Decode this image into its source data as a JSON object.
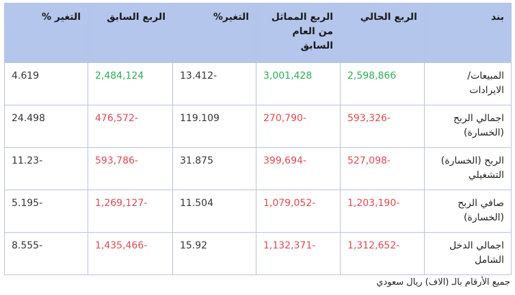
{
  "table": {
    "headers": [
      "بند",
      "الربع الحالي",
      "الربع المماثل من العام السابق",
      "التغير%",
      "الربع السابق",
      "التغير %"
    ],
    "rows": [
      {
        "label": "المبيعات/ الايرادات",
        "current": "2,598,866",
        "same_last_year": "3,001,428",
        "change_yoy": "13.412-",
        "previous": "2,484,124",
        "change_qoq": "4.619"
      },
      {
        "label": "اجمالي الربح (الخسارة)",
        "current": "593,326-",
        "same_last_year": "270,790-",
        "change_yoy": "119.109",
        "previous": "476,572-",
        "change_qoq": "24.498"
      },
      {
        "label": "الربح (الخسارة) التشغيلي",
        "current": "527,098-",
        "same_last_year": "399,694-",
        "change_yoy": "31.875",
        "previous": "593,786-",
        "change_qoq": "11.23-"
      },
      {
        "label": "صافي الربح (الخسارة)",
        "current": "1,203,190-",
        "same_last_year": "1,079,052-",
        "change_yoy": "11.504",
        "previous": "1,269,127-",
        "change_qoq": "5.195-"
      },
      {
        "label": "اجمالي الدخل الشامل",
        "current": "1,312,652-",
        "same_last_year": "1,132,371-",
        "change_yoy": "15.92",
        "previous": "1,435,466-",
        "change_qoq": "8.555-"
      }
    ]
  },
  "footnote": "جميع الأرقام بالـ (الاف) ريال سعودي",
  "colors": {
    "header_bg": "#b4c6ec",
    "positive": "#2eae55",
    "negative": "#e0494f",
    "border": "#b8c4dc"
  }
}
